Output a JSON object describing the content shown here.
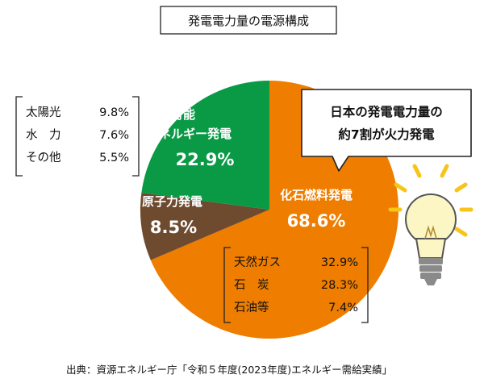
{
  "chart_data": {
    "type": "pie",
    "title": "発電電力量の電源構成",
    "slices": [
      {
        "name": "化石燃料発電",
        "value": 68.6,
        "value_label": "68.6%",
        "color": "#ee7d00"
      },
      {
        "name": "原子力発電",
        "value": 8.5,
        "value_label": "8.5%",
        "color": "#6e4a2f"
      },
      {
        "name": "再生可能エネルギー発電",
        "label_lines": [
          "再生可能",
          "エネルギー発電"
        ],
        "value": 22.9,
        "value_label": "22.9%",
        "color": "#0a9a46"
      }
    ],
    "breakdowns": {
      "renewable": [
        {
          "name": "太陽光",
          "value": 9.8,
          "value_label": "9.8%"
        },
        {
          "name": "水　力",
          "value": 7.6,
          "value_label": "7.6%"
        },
        {
          "name": "その他",
          "value": 5.5,
          "value_label": "5.5%"
        }
      ],
      "fossil": [
        {
          "name": "天然ガス",
          "value": 32.9,
          "value_label": "32.9%"
        },
        {
          "name": "石　炭",
          "value": 28.3,
          "value_label": "28.3%"
        },
        {
          "name": "石油等",
          "value": 7.4,
          "value_label": "7.4%"
        }
      ]
    },
    "callout": [
      "日本の発電電力量の",
      "約7割が火力発電"
    ],
    "source": "出典：資源エネルギー庁「令和５年度(2023年度)エネルギー需給実績」",
    "legend": "none"
  },
  "colors": {
    "fossil": "#ee7d00",
    "nuclear": "#6e4a2f",
    "renewable": "#0a9a46",
    "bulb_glass": "#fbf6c4",
    "bulb_rays": "#f7c51a",
    "bulb_base": "#8a8a8a"
  },
  "icons": {
    "bulb": "light-bulb-icon"
  }
}
